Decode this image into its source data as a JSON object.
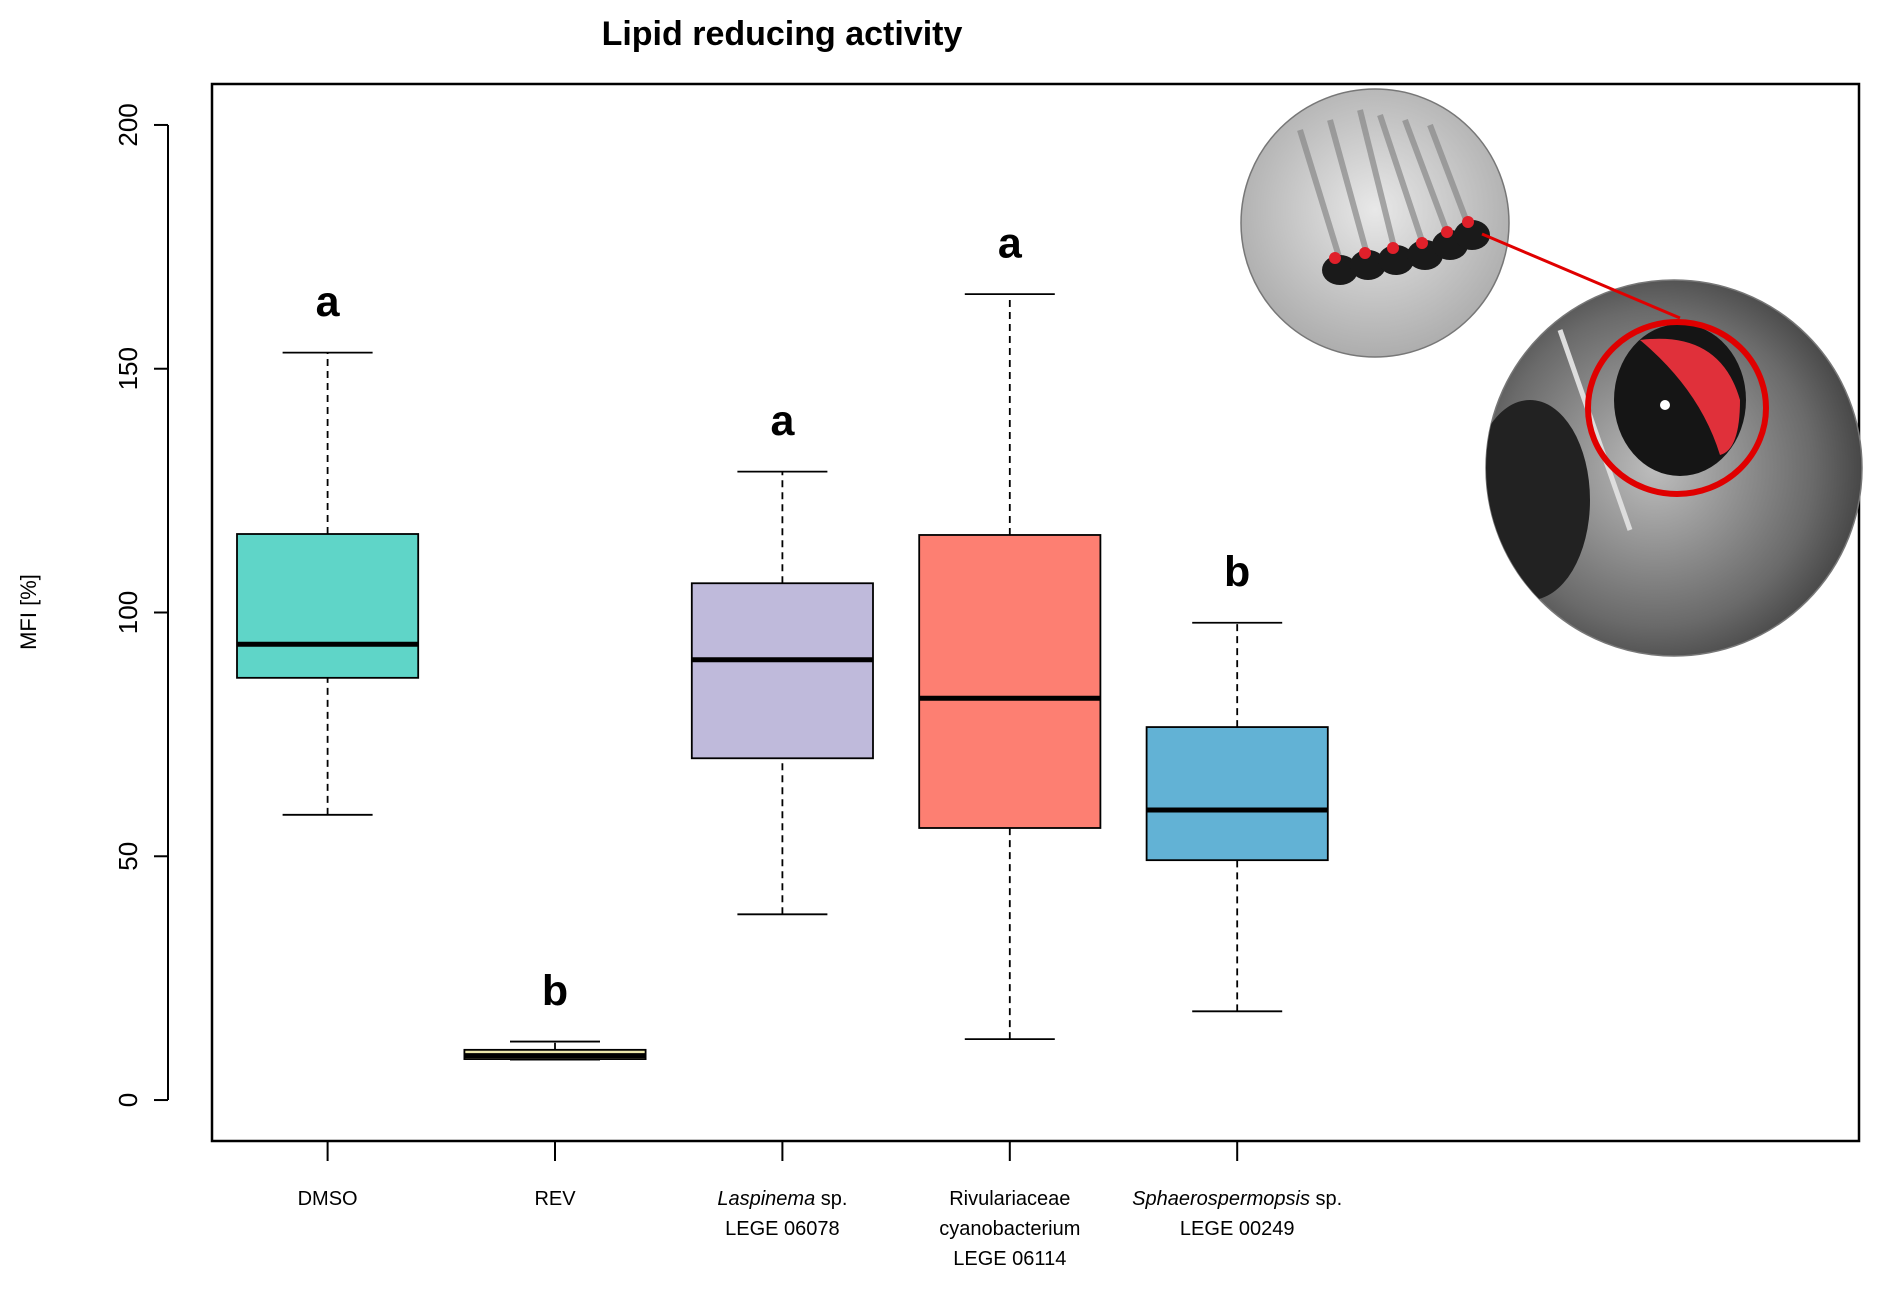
{
  "chart_data": {
    "type": "box",
    "title": "Lipid reducing activity",
    "y_label": "MFI [%]",
    "categories": [
      [
        [
          {
            "text": "DMSO",
            "italic": false
          }
        ]
      ],
      [
        [
          {
            "text": "REV",
            "italic": false
          }
        ]
      ],
      [
        [
          {
            "text": "Laspinema",
            "italic": true
          },
          {
            "text": " sp.",
            "italic": false
          }
        ],
        [
          {
            "text": "LEGE 06078",
            "italic": false
          }
        ]
      ],
      [
        [
          {
            "text": "Rivulariaceae",
            "italic": false
          }
        ],
        [
          {
            "text": "cyanobacterium",
            "italic": false
          }
        ],
        [
          {
            "text": "LEGE 06114",
            "italic": false
          }
        ]
      ],
      [
        [
          {
            "text": "Sphaerospermopsis",
            "italic": true
          },
          {
            "text": " sp.",
            "italic": false
          }
        ],
        [
          {
            "text": "LEGE 00249",
            "italic": false
          }
        ]
      ]
    ],
    "boxes": [
      {
        "min": 58.5,
        "q1": 86.6,
        "median": 93.5,
        "q3": 116.1,
        "max": 153.3
      },
      {
        "min": 8.3,
        "q1": 8.4,
        "median": 9.1,
        "q3": 10.3,
        "max": 12.0
      },
      {
        "min": 38.1,
        "q1": 70.1,
        "median": 90.3,
        "q3": 106.0,
        "max": 128.9
      },
      {
        "min": 12.5,
        "q1": 55.8,
        "median": 82.4,
        "q3": 115.9,
        "max": 165.3
      },
      {
        "min": 18.2,
        "q1": 49.2,
        "median": 59.5,
        "q3": 76.5,
        "max": 97.9
      }
    ],
    "colors": [
      "#5fd5c8",
      "#ebe6aa",
      "#bfbadb",
      "#fd7f72",
      "#62b2d5"
    ],
    "group_letters": [
      "a",
      "b",
      "a",
      "a",
      "b"
    ],
    "ylim": [
      -8.4,
      208.4
    ],
    "yticks": [
      0,
      50,
      100,
      150,
      200
    ]
  }
}
